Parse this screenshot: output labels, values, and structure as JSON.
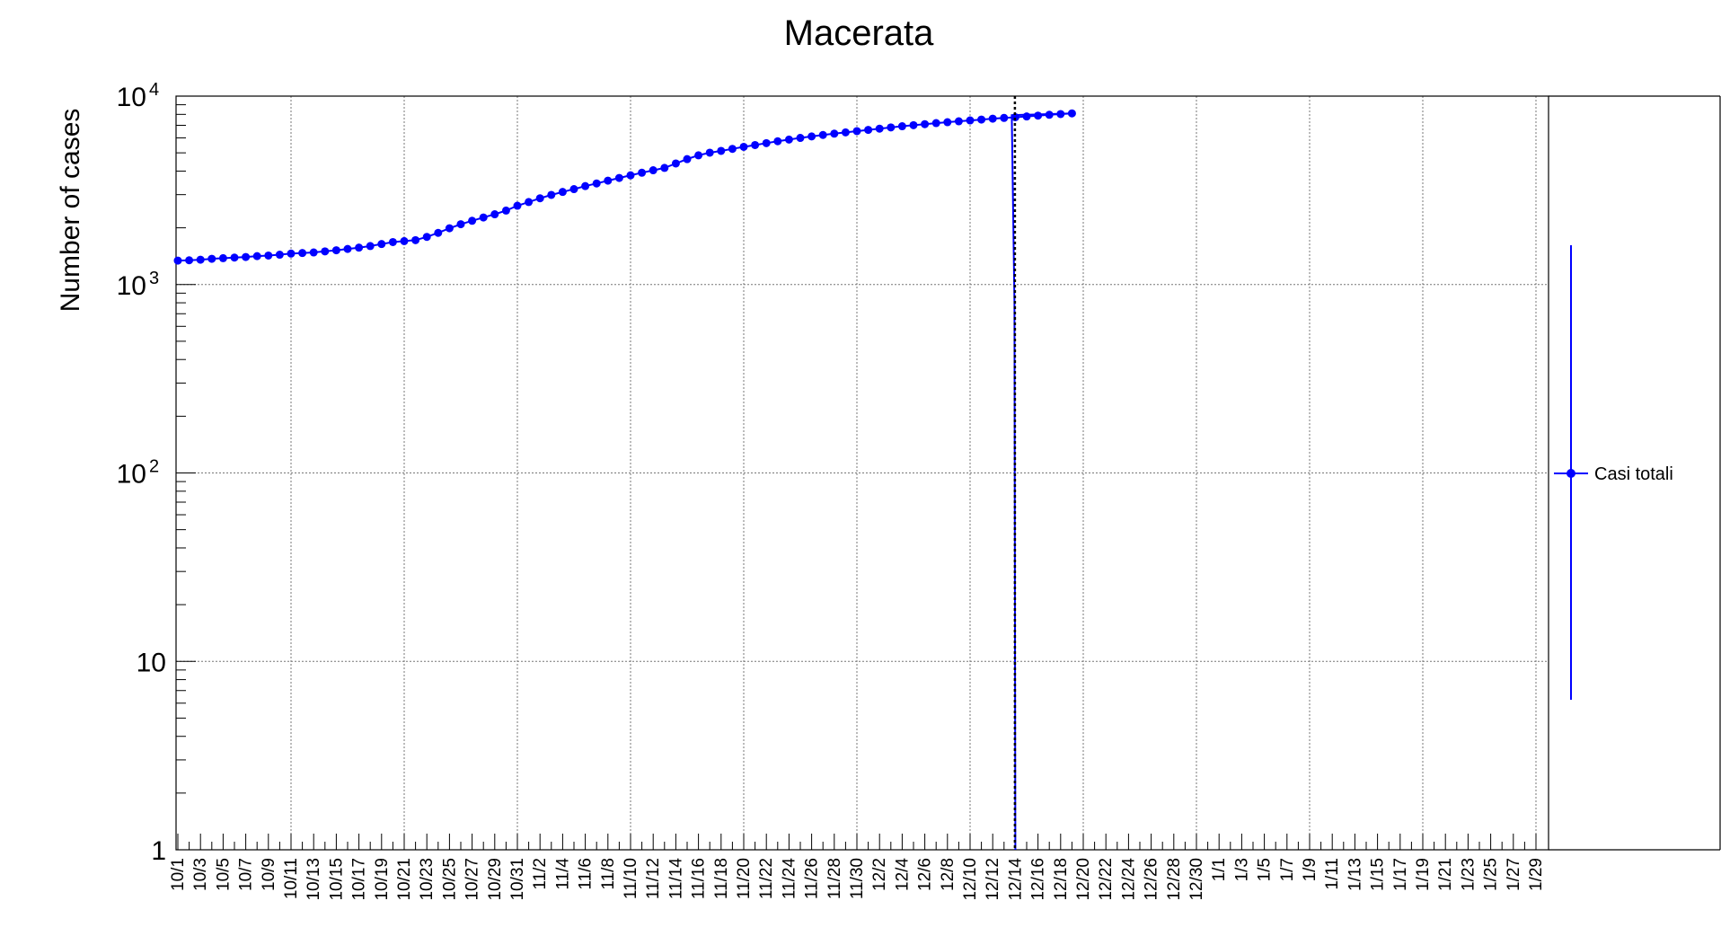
{
  "chart_data": {
    "type": "line",
    "title": "Macerata",
    "xlabel": "",
    "ylabel": "Number of cases",
    "yscale": "log",
    "ylim": [
      1,
      10000
    ],
    "y_tick_labels": [
      {
        "base": "1",
        "exp": ""
      },
      {
        "base": "10",
        "exp": ""
      },
      {
        "base": "10",
        "exp": "2"
      },
      {
        "base": "10",
        "exp": "3"
      },
      {
        "base": "10",
        "exp": "4"
      }
    ],
    "x_tick_labels": [
      "10/1",
      "10/3",
      "10/5",
      "10/7",
      "10/9",
      "10/11",
      "10/13",
      "10/15",
      "10/17",
      "10/19",
      "10/21",
      "10/23",
      "10/25",
      "10/27",
      "10/29",
      "10/31",
      "11/2",
      "11/4",
      "11/6",
      "11/8",
      "11/10",
      "11/12",
      "11/14",
      "11/16",
      "11/18",
      "11/20",
      "11/22",
      "11/24",
      "11/26",
      "11/28",
      "11/30",
      "12/2",
      "12/4",
      "12/6",
      "12/8",
      "12/10",
      "12/12",
      "12/14",
      "12/16",
      "12/18",
      "12/20",
      "12/22",
      "12/24",
      "12/26",
      "12/28",
      "12/30",
      "1/1",
      "1/3",
      "1/5",
      "1/7",
      "1/9",
      "1/11",
      "1/13",
      "1/15",
      "1/17",
      "1/19",
      "1/21",
      "1/23",
      "1/25",
      "1/27",
      "1/29"
    ],
    "grid": true,
    "legend_position": "right",
    "series": [
      {
        "name": "Casi totali",
        "color": "#0000ff",
        "x_start": "10/1",
        "values": [
          1340,
          1345,
          1355,
          1370,
          1380,
          1390,
          1400,
          1415,
          1425,
          1440,
          1460,
          1470,
          1480,
          1500,
          1520,
          1545,
          1570,
          1600,
          1640,
          1680,
          1700,
          1720,
          1790,
          1880,
          1990,
          2090,
          2180,
          2270,
          2360,
          2470,
          2620,
          2740,
          2870,
          2990,
          3100,
          3210,
          3330,
          3440,
          3560,
          3680,
          3800,
          3920,
          4040,
          4160,
          4390,
          4630,
          4850,
          5010,
          5120,
          5250,
          5380,
          5500,
          5630,
          5760,
          5880,
          6000,
          6110,
          6220,
          6320,
          6420,
          6520,
          6620,
          6720,
          6820,
          6920,
          7010,
          7100,
          7190,
          7270,
          7350,
          7430,
          7510,
          7590,
          7660,
          7730,
          7800,
          7880,
          7960,
          8030,
          8100
        ],
        "drop_date": "12/14"
      }
    ],
    "marker_line_date": "12/14"
  }
}
